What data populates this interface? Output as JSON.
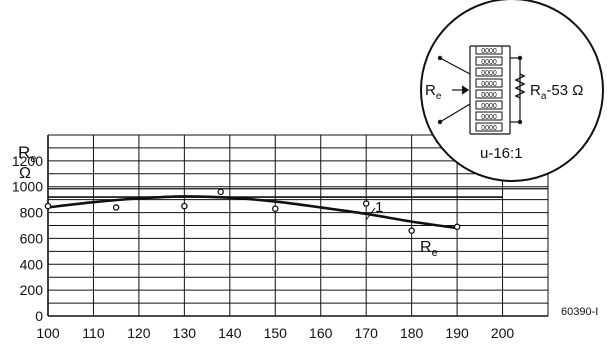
{
  "chart_data": {
    "type": "line",
    "xlabel": "",
    "ylabel_symbol": "R",
    "ylabel_subscript": "e",
    "ylabel_unit": "Ω",
    "xlim": [
      100,
      210
    ],
    "ylim": [
      0,
      1400
    ],
    "x_ticks": [
      100,
      110,
      120,
      130,
      140,
      150,
      160,
      170,
      180,
      190,
      200
    ],
    "y_ticks": [
      0,
      200,
      400,
      600,
      800,
      1000,
      1200
    ],
    "y_gridlines": [
      0,
      100,
      200,
      300,
      400,
      500,
      600,
      700,
      800,
      900,
      1000,
      1100,
      1200,
      1300,
      1400
    ],
    "grid": true,
    "series": [
      {
        "name": "Re",
        "style": "curve",
        "x": [
          100,
          110,
          120,
          130,
          140,
          150,
          160,
          170,
          180,
          190
        ],
        "y": [
          840,
          880,
          910,
          925,
          915,
          885,
          840,
          790,
          730,
          680
        ]
      },
      {
        "name": "1",
        "style": "reference-line",
        "x": [
          100,
          200
        ],
        "y": [
          920,
          920
        ]
      }
    ],
    "points": {
      "x": [
        100,
        115,
        130,
        138,
        150,
        170,
        180,
        190
      ],
      "y": [
        850,
        840,
        850,
        960,
        830,
        870,
        660,
        690
      ]
    },
    "reference_level": 1000,
    "curve_label_symbol": "R",
    "curve_label_subscript": "e",
    "line_label": "1",
    "figure_code": "60390-I"
  },
  "inset": {
    "left_label_symbol": "R",
    "left_label_subscript": "e",
    "right_label_symbol": "R",
    "right_label_subscript": "a",
    "right_label_value": "-53 Ω",
    "ratio_label": "u-16:1",
    "coil_label": "0000"
  }
}
